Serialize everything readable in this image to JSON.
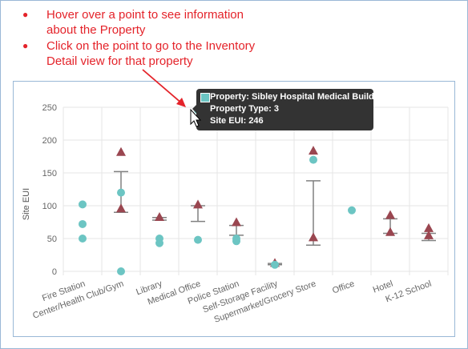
{
  "instructions": [
    {
      "lines": [
        "Hover over a point to see information",
        "about the Property"
      ]
    },
    {
      "lines": [
        "Click on the point to go to the Inventory",
        "Detail view for that property"
      ]
    }
  ],
  "colors": {
    "note_text": "#e4232a",
    "point": "#6cc5c3",
    "triangle": "#9a4650",
    "whisker": "#808080",
    "grid": "#e6e6e6",
    "tooltip_bg": "#333333",
    "tooltip_swatch": "#6cc5c3"
  },
  "icons": {
    "bullet": "red-dot",
    "arrow": "red-arrow",
    "cursor": "mouse-pointer"
  },
  "tooltip": {
    "lines": [
      "Property: Sibley Hospital Medical Building",
      "Property Type: 3",
      "Site EUI: 246"
    ]
  },
  "chart_data": {
    "type": "scatter",
    "ylabel": "Site EUI",
    "ylim": [
      0,
      250
    ],
    "yticks": [
      0,
      50,
      100,
      150,
      200,
      250
    ],
    "grid": true,
    "categories": [
      "Fire Station",
      "Center/Health Club/Gym",
      "Library",
      "Medical Office",
      "Police Station",
      "Self-Storage Facility",
      "Supermarket/Grocery Store",
      "Office",
      "Hotel",
      "K-12 School"
    ],
    "points": [
      {
        "x": 0,
        "y": 102
      },
      {
        "x": 0,
        "y": 72
      },
      {
        "x": 0,
        "y": 50
      },
      {
        "x": 1,
        "y": 120
      },
      {
        "x": 1,
        "y": 0
      },
      {
        "x": 2,
        "y": 50
      },
      {
        "x": 2,
        "y": 43
      },
      {
        "x": 3,
        "y": 246
      },
      {
        "x": 3,
        "y": 48
      },
      {
        "x": 4,
        "y": 50
      },
      {
        "x": 4,
        "y": 46
      },
      {
        "x": 5,
        "y": 10
      },
      {
        "x": 6,
        "y": 170
      },
      {
        "x": 7,
        "y": 93
      }
    ],
    "triangles": [
      {
        "x": 1,
        "y": 182
      },
      {
        "x": 1,
        "y": 96
      },
      {
        "x": 2,
        "y": 83
      },
      {
        "x": 3,
        "y": 102
      },
      {
        "x": 4,
        "y": 75
      },
      {
        "x": 5,
        "y": 13
      },
      {
        "x": 6,
        "y": 184
      },
      {
        "x": 6,
        "y": 52
      },
      {
        "x": 8,
        "y": 86
      },
      {
        "x": 8,
        "y": 60
      },
      {
        "x": 9,
        "y": 66
      },
      {
        "x": 9,
        "y": 55
      }
    ],
    "whiskers": [
      {
        "x": 1,
        "low": 90,
        "high": 152
      },
      {
        "x": 2,
        "low": 78,
        "high": 82
      },
      {
        "x": 3,
        "low": 76,
        "high": 100
      },
      {
        "x": 4,
        "low": 55,
        "high": 70
      },
      {
        "x": 5,
        "low": 10,
        "high": 12
      },
      {
        "x": 6,
        "low": 40,
        "high": 138
      },
      {
        "x": 8,
        "low": 58,
        "high": 80
      },
      {
        "x": 9,
        "low": 47,
        "high": 58
      }
    ],
    "hovered_point": {
      "x": 3,
      "y": 246
    }
  }
}
